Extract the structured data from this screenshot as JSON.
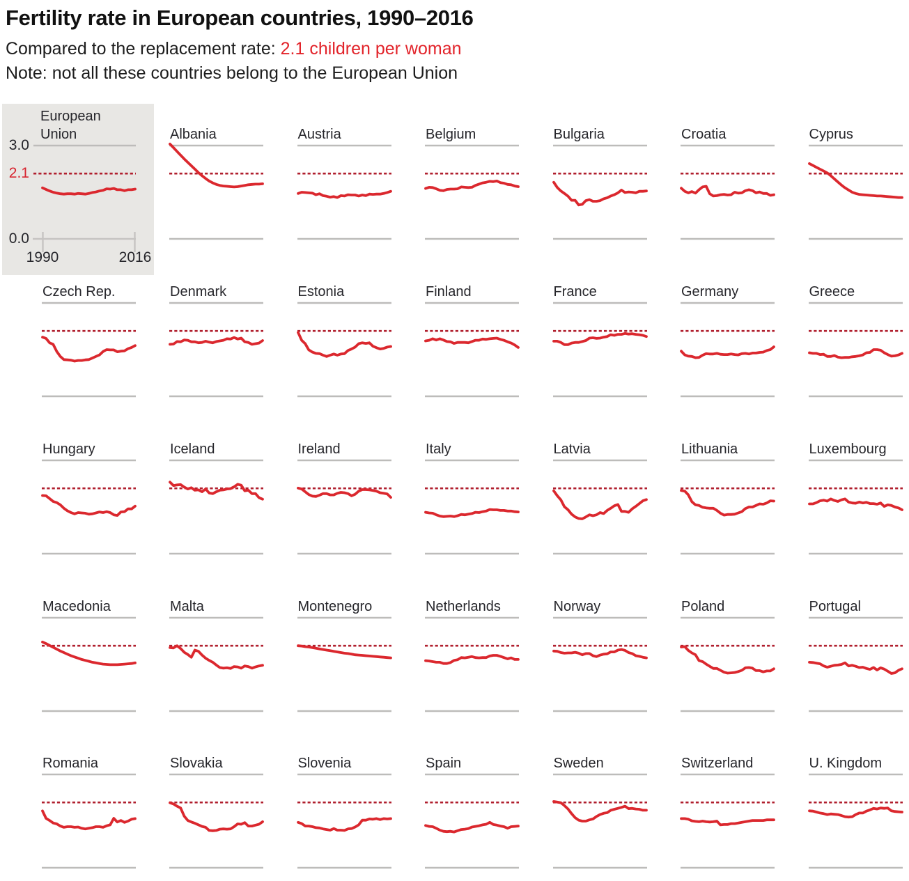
{
  "header": {
    "title": "Fertility rate in European countries, 1990–2016",
    "subtitle_prefix": "Compared to the replacement rate: ",
    "subtitle_highlight": "2.1 children per woman",
    "note": "Note: not all these countries belong to the European Union"
  },
  "eu_panel": {
    "name_line1": "European",
    "name_line2": "Union",
    "y_top_label": "3.0",
    "y_replacement_label": "2.1",
    "y_bottom_label": "0.0",
    "x_start_label": "1990",
    "x_end_label": "2016"
  },
  "colors": {
    "line": "#db282e",
    "dashed": "#b01f2e",
    "accent_text": "#e2232a",
    "grid_gray": "#bdbcba",
    "axis_gray": "#c6c4c2",
    "eu_bg": "#e8e7e4",
    "label": "#26262b"
  },
  "chart_data": {
    "type": "line",
    "x_start": 1990,
    "x_end": 2016,
    "ylim": [
      0,
      3
    ],
    "gridline_top": 3.0,
    "replacement_rate": 2.1,
    "grid": "minimal",
    "legend": "none",
    "series": [
      {
        "name": "European Union",
        "values": [
          1.64,
          1.59,
          1.54,
          1.5,
          1.47,
          1.45,
          1.44,
          1.45,
          1.45,
          1.44,
          1.46,
          1.45,
          1.44,
          1.46,
          1.49,
          1.51,
          1.54,
          1.56,
          1.61,
          1.6,
          1.62,
          1.58,
          1.58,
          1.55,
          1.58,
          1.58,
          1.6
        ]
      },
      {
        "name": "Albania",
        "values": [
          3.05,
          2.93,
          2.81,
          2.69,
          2.57,
          2.46,
          2.35,
          2.24,
          2.13,
          2.03,
          1.94,
          1.86,
          1.8,
          1.75,
          1.72,
          1.7,
          1.69,
          1.68,
          1.67,
          1.68,
          1.7,
          1.72,
          1.74,
          1.75,
          1.76,
          1.76,
          1.77
        ]
      },
      {
        "name": "Austria",
        "values": [
          1.46,
          1.5,
          1.49,
          1.48,
          1.47,
          1.42,
          1.45,
          1.39,
          1.37,
          1.34,
          1.36,
          1.33,
          1.39,
          1.38,
          1.42,
          1.41,
          1.41,
          1.38,
          1.41,
          1.39,
          1.44,
          1.43,
          1.44,
          1.44,
          1.46,
          1.49,
          1.53
        ]
      },
      {
        "name": "Belgium",
        "values": [
          1.62,
          1.66,
          1.65,
          1.61,
          1.56,
          1.55,
          1.59,
          1.6,
          1.6,
          1.61,
          1.67,
          1.66,
          1.65,
          1.66,
          1.72,
          1.76,
          1.8,
          1.82,
          1.85,
          1.84,
          1.86,
          1.81,
          1.79,
          1.75,
          1.74,
          1.7,
          1.68
        ]
      },
      {
        "name": "Bulgaria",
        "values": [
          1.82,
          1.65,
          1.54,
          1.46,
          1.37,
          1.24,
          1.24,
          1.09,
          1.11,
          1.23,
          1.26,
          1.21,
          1.21,
          1.23,
          1.29,
          1.32,
          1.38,
          1.42,
          1.48,
          1.57,
          1.49,
          1.51,
          1.5,
          1.48,
          1.53,
          1.53,
          1.54
        ]
      },
      {
        "name": "Croatia",
        "values": [
          1.63,
          1.53,
          1.48,
          1.52,
          1.47,
          1.58,
          1.67,
          1.69,
          1.45,
          1.38,
          1.39,
          1.42,
          1.43,
          1.41,
          1.42,
          1.5,
          1.47,
          1.48,
          1.55,
          1.58,
          1.55,
          1.48,
          1.51,
          1.46,
          1.46,
          1.4,
          1.42
        ]
      },
      {
        "name": "Cyprus",
        "values": [
          2.42,
          2.36,
          2.3,
          2.24,
          2.18,
          2.12,
          2.03,
          1.93,
          1.83,
          1.73,
          1.64,
          1.57,
          1.5,
          1.46,
          1.43,
          1.42,
          1.41,
          1.4,
          1.39,
          1.38,
          1.38,
          1.37,
          1.36,
          1.35,
          1.34,
          1.33,
          1.33
        ]
      },
      {
        "name": "Czech Rep.",
        "values": [
          1.9,
          1.86,
          1.72,
          1.67,
          1.44,
          1.28,
          1.18,
          1.17,
          1.16,
          1.13,
          1.15,
          1.15,
          1.17,
          1.18,
          1.23,
          1.28,
          1.33,
          1.44,
          1.5,
          1.49,
          1.49,
          1.43,
          1.45,
          1.46,
          1.53,
          1.57,
          1.63
        ]
      },
      {
        "name": "Denmark",
        "values": [
          1.67,
          1.68,
          1.76,
          1.75,
          1.81,
          1.8,
          1.75,
          1.75,
          1.72,
          1.73,
          1.77,
          1.74,
          1.72,
          1.76,
          1.78,
          1.8,
          1.85,
          1.84,
          1.89,
          1.84,
          1.87,
          1.75,
          1.73,
          1.67,
          1.69,
          1.71,
          1.79
        ]
      },
      {
        "name": "Estonia",
        "values": [
          2.05,
          1.8,
          1.69,
          1.49,
          1.42,
          1.38,
          1.37,
          1.32,
          1.28,
          1.32,
          1.36,
          1.32,
          1.36,
          1.37,
          1.47,
          1.52,
          1.58,
          1.69,
          1.72,
          1.7,
          1.72,
          1.61,
          1.56,
          1.52,
          1.54,
          1.58,
          1.6
        ]
      },
      {
        "name": "Finland",
        "values": [
          1.78,
          1.8,
          1.85,
          1.81,
          1.85,
          1.81,
          1.76,
          1.75,
          1.7,
          1.73,
          1.73,
          1.73,
          1.72,
          1.76,
          1.8,
          1.8,
          1.84,
          1.83,
          1.85,
          1.86,
          1.87,
          1.83,
          1.8,
          1.75,
          1.71,
          1.65,
          1.57
        ]
      },
      {
        "name": "France",
        "values": [
          1.77,
          1.77,
          1.73,
          1.66,
          1.66,
          1.71,
          1.73,
          1.73,
          1.76,
          1.79,
          1.87,
          1.88,
          1.86,
          1.87,
          1.9,
          1.92,
          1.98,
          1.96,
          1.99,
          1.99,
          2.02,
          2.0,
          2.01,
          1.99,
          1.98,
          1.96,
          1.92
        ]
      },
      {
        "name": "Germany",
        "values": [
          1.45,
          1.33,
          1.29,
          1.28,
          1.24,
          1.25,
          1.32,
          1.37,
          1.36,
          1.36,
          1.38,
          1.35,
          1.34,
          1.34,
          1.36,
          1.34,
          1.33,
          1.37,
          1.38,
          1.36,
          1.39,
          1.39,
          1.41,
          1.42,
          1.47,
          1.5,
          1.59
        ]
      },
      {
        "name": "Greece",
        "values": [
          1.4,
          1.38,
          1.38,
          1.34,
          1.35,
          1.28,
          1.28,
          1.31,
          1.26,
          1.24,
          1.25,
          1.25,
          1.27,
          1.28,
          1.3,
          1.33,
          1.4,
          1.41,
          1.5,
          1.5,
          1.48,
          1.4,
          1.34,
          1.29,
          1.3,
          1.33,
          1.38
        ]
      },
      {
        "name": "Hungary",
        "values": [
          1.87,
          1.86,
          1.77,
          1.68,
          1.64,
          1.57,
          1.46,
          1.38,
          1.32,
          1.28,
          1.32,
          1.31,
          1.3,
          1.27,
          1.28,
          1.31,
          1.34,
          1.32,
          1.35,
          1.32,
          1.25,
          1.23,
          1.34,
          1.35,
          1.44,
          1.44,
          1.53
        ]
      },
      {
        "name": "Iceland",
        "values": [
          2.3,
          2.19,
          2.21,
          2.22,
          2.14,
          2.08,
          2.12,
          2.04,
          2.05,
          1.99,
          2.08,
          1.95,
          1.93,
          1.99,
          2.04,
          2.05,
          2.08,
          2.09,
          2.15,
          2.23,
          2.2,
          2.02,
          2.04,
          1.93,
          1.93,
          1.8,
          1.75
        ]
      },
      {
        "name": "Ireland",
        "values": [
          2.11,
          2.08,
          1.99,
          1.9,
          1.85,
          1.84,
          1.88,
          1.93,
          1.93,
          1.89,
          1.89,
          1.94,
          1.97,
          1.96,
          1.93,
          1.86,
          1.91,
          2.01,
          2.06,
          2.06,
          2.05,
          2.03,
          2.01,
          1.96,
          1.94,
          1.92,
          1.81
        ]
      },
      {
        "name": "Italy",
        "values": [
          1.33,
          1.31,
          1.3,
          1.25,
          1.21,
          1.19,
          1.2,
          1.21,
          1.19,
          1.22,
          1.26,
          1.25,
          1.27,
          1.29,
          1.33,
          1.32,
          1.35,
          1.37,
          1.42,
          1.41,
          1.41,
          1.39,
          1.39,
          1.37,
          1.37,
          1.35,
          1.34
        ]
      },
      {
        "name": "Latvia",
        "values": [
          2.02,
          1.86,
          1.73,
          1.51,
          1.41,
          1.27,
          1.18,
          1.13,
          1.12,
          1.18,
          1.25,
          1.22,
          1.25,
          1.32,
          1.29,
          1.39,
          1.46,
          1.54,
          1.58,
          1.36,
          1.36,
          1.33,
          1.44,
          1.52,
          1.61,
          1.7,
          1.74
        ]
      },
      {
        "name": "Lithuania",
        "values": [
          2.03,
          2.01,
          1.89,
          1.67,
          1.57,
          1.55,
          1.49,
          1.47,
          1.46,
          1.46,
          1.39,
          1.3,
          1.24,
          1.26,
          1.26,
          1.27,
          1.31,
          1.35,
          1.45,
          1.5,
          1.5,
          1.55,
          1.6,
          1.59,
          1.63,
          1.7,
          1.69
        ]
      },
      {
        "name": "Luxembourg",
        "values": [
          1.6,
          1.6,
          1.64,
          1.7,
          1.72,
          1.69,
          1.76,
          1.71,
          1.68,
          1.73,
          1.76,
          1.66,
          1.63,
          1.62,
          1.66,
          1.63,
          1.65,
          1.61,
          1.61,
          1.59,
          1.63,
          1.52,
          1.57,
          1.55,
          1.5,
          1.47,
          1.41
        ]
      },
      {
        "name": "Macedonia",
        "values": [
          2.22,
          2.17,
          2.11,
          2.05,
          1.99,
          1.93,
          1.88,
          1.83,
          1.78,
          1.74,
          1.7,
          1.66,
          1.63,
          1.6,
          1.57,
          1.55,
          1.53,
          1.51,
          1.5,
          1.49,
          1.49,
          1.49,
          1.5,
          1.51,
          1.52,
          1.53,
          1.55
        ]
      },
      {
        "name": "Malta",
        "values": [
          2.04,
          2.03,
          2.1,
          2.01,
          1.89,
          1.82,
          1.73,
          1.96,
          1.92,
          1.8,
          1.7,
          1.63,
          1.57,
          1.48,
          1.4,
          1.38,
          1.39,
          1.37,
          1.43,
          1.42,
          1.38,
          1.45,
          1.43,
          1.38,
          1.42,
          1.45,
          1.47
        ]
      },
      {
        "name": "Montenegro",
        "values": [
          2.1,
          2.09,
          2.07,
          2.06,
          2.04,
          2.02,
          2.0,
          1.98,
          1.96,
          1.94,
          1.92,
          1.9,
          1.88,
          1.86,
          1.85,
          1.83,
          1.81,
          1.8,
          1.79,
          1.78,
          1.77,
          1.76,
          1.75,
          1.74,
          1.73,
          1.72,
          1.71
        ]
      },
      {
        "name": "Netherlands",
        "values": [
          1.62,
          1.61,
          1.59,
          1.57,
          1.57,
          1.53,
          1.53,
          1.56,
          1.63,
          1.65,
          1.72,
          1.71,
          1.73,
          1.75,
          1.72,
          1.71,
          1.72,
          1.72,
          1.77,
          1.79,
          1.79,
          1.76,
          1.72,
          1.68,
          1.71,
          1.66,
          1.66
        ]
      },
      {
        "name": "Norway",
        "values": [
          1.93,
          1.92,
          1.88,
          1.86,
          1.87,
          1.87,
          1.89,
          1.86,
          1.81,
          1.85,
          1.85,
          1.78,
          1.75,
          1.8,
          1.83,
          1.84,
          1.9,
          1.9,
          1.96,
          1.98,
          1.95,
          1.88,
          1.85,
          1.78,
          1.76,
          1.73,
          1.71
        ]
      },
      {
        "name": "Poland",
        "values": [
          2.06,
          2.07,
          1.95,
          1.87,
          1.81,
          1.62,
          1.59,
          1.51,
          1.44,
          1.37,
          1.37,
          1.31,
          1.25,
          1.22,
          1.23,
          1.24,
          1.27,
          1.31,
          1.39,
          1.4,
          1.38,
          1.3,
          1.3,
          1.26,
          1.29,
          1.29,
          1.36
        ]
      },
      {
        "name": "Portugal",
        "values": [
          1.57,
          1.56,
          1.54,
          1.52,
          1.45,
          1.41,
          1.44,
          1.47,
          1.48,
          1.5,
          1.55,
          1.45,
          1.47,
          1.44,
          1.4,
          1.41,
          1.37,
          1.34,
          1.4,
          1.32,
          1.39,
          1.35,
          1.28,
          1.21,
          1.23,
          1.31,
          1.36
        ]
      },
      {
        "name": "Romania",
        "values": [
          1.83,
          1.59,
          1.52,
          1.44,
          1.41,
          1.34,
          1.3,
          1.32,
          1.32,
          1.3,
          1.31,
          1.27,
          1.25,
          1.27,
          1.29,
          1.32,
          1.32,
          1.3,
          1.35,
          1.38,
          1.59,
          1.47,
          1.52,
          1.46,
          1.5,
          1.56,
          1.58
        ]
      },
      {
        "name": "Slovakia",
        "values": [
          2.09,
          2.05,
          1.98,
          1.92,
          1.66,
          1.52,
          1.47,
          1.43,
          1.38,
          1.33,
          1.3,
          1.2,
          1.19,
          1.2,
          1.24,
          1.25,
          1.24,
          1.25,
          1.32,
          1.41,
          1.4,
          1.45,
          1.34,
          1.34,
          1.37,
          1.4,
          1.48
        ]
      },
      {
        "name": "Slovenia",
        "values": [
          1.46,
          1.42,
          1.34,
          1.34,
          1.32,
          1.29,
          1.28,
          1.25,
          1.23,
          1.21,
          1.26,
          1.21,
          1.21,
          1.2,
          1.25,
          1.26,
          1.31,
          1.38,
          1.53,
          1.53,
          1.57,
          1.56,
          1.58,
          1.55,
          1.58,
          1.57,
          1.58
        ]
      },
      {
        "name": "Spain",
        "values": [
          1.36,
          1.33,
          1.32,
          1.27,
          1.21,
          1.17,
          1.16,
          1.17,
          1.15,
          1.19,
          1.23,
          1.24,
          1.26,
          1.31,
          1.33,
          1.35,
          1.38,
          1.4,
          1.46,
          1.39,
          1.37,
          1.34,
          1.32,
          1.27,
          1.32,
          1.33,
          1.34
        ]
      },
      {
        "name": "Sweden",
        "values": [
          2.13,
          2.11,
          2.09,
          2.0,
          1.89,
          1.74,
          1.61,
          1.53,
          1.5,
          1.5,
          1.54,
          1.57,
          1.65,
          1.71,
          1.75,
          1.77,
          1.85,
          1.88,
          1.91,
          1.94,
          1.98,
          1.9,
          1.91,
          1.89,
          1.88,
          1.85,
          1.85
        ]
      },
      {
        "name": "Switzerland",
        "values": [
          1.58,
          1.58,
          1.56,
          1.51,
          1.49,
          1.48,
          1.5,
          1.48,
          1.47,
          1.48,
          1.5,
          1.38,
          1.39,
          1.39,
          1.42,
          1.42,
          1.44,
          1.46,
          1.48,
          1.5,
          1.52,
          1.52,
          1.52,
          1.52,
          1.54,
          1.54,
          1.54
        ]
      },
      {
        "name": "U. Kingdom",
        "values": [
          1.83,
          1.82,
          1.79,
          1.76,
          1.74,
          1.71,
          1.73,
          1.72,
          1.71,
          1.68,
          1.64,
          1.63,
          1.64,
          1.71,
          1.76,
          1.76,
          1.82,
          1.86,
          1.91,
          1.89,
          1.92,
          1.91,
          1.92,
          1.83,
          1.81,
          1.8,
          1.79
        ]
      }
    ]
  }
}
